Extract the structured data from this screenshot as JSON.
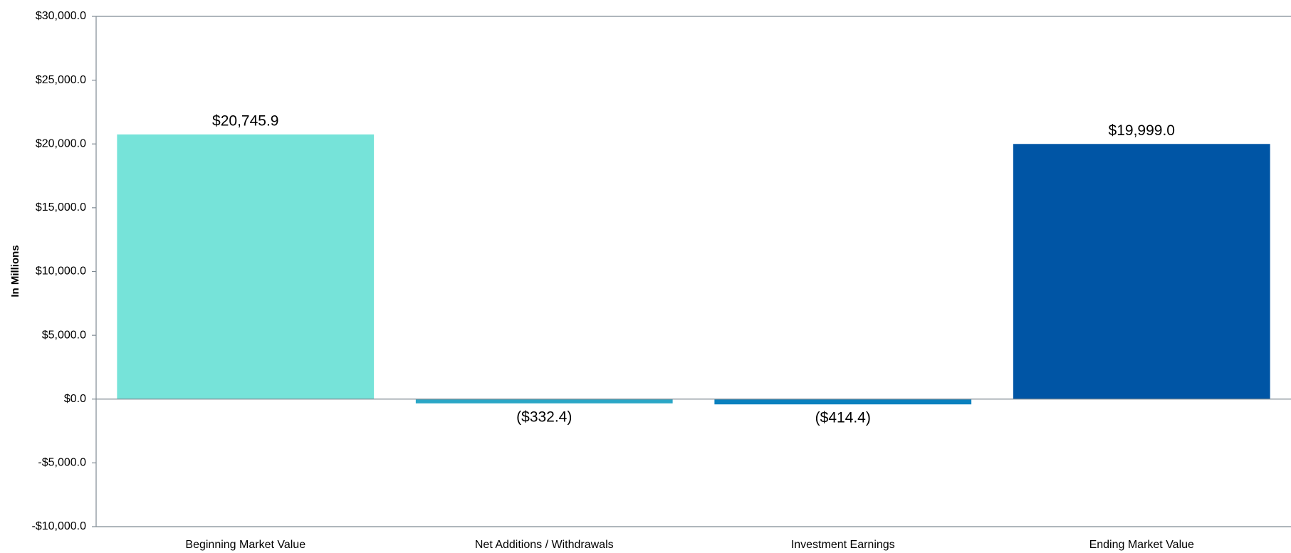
{
  "chart_data": {
    "type": "bar",
    "y_axis_label": "In Millions",
    "categories": [
      "Beginning Market Value",
      "Net Additions / Withdrawals",
      "Investment Earnings",
      "Ending Market Value"
    ],
    "values": [
      20745.9,
      -332.4,
      -414.4,
      19999.0
    ],
    "value_labels": [
      "$20,745.9",
      "($332.4)",
      "($414.4)",
      "$19,999.0"
    ],
    "colors": [
      "#76e3d9",
      "#2ba6c6",
      "#0a80be",
      "#0055a5"
    ],
    "ylim": [
      -10000,
      30000
    ],
    "yticks": [
      {
        "value": -10000,
        "label": "-$10,000.0"
      },
      {
        "value": -5000,
        "label": "-$5,000.0"
      },
      {
        "value": 0,
        "label": "$0.0"
      },
      {
        "value": 5000,
        "label": "$5,000.0"
      },
      {
        "value": 10000,
        "label": "$10,000.0"
      },
      {
        "value": 15000,
        "label": "$15,000.0"
      },
      {
        "value": 20000,
        "label": "$20,000.0"
      },
      {
        "value": 25000,
        "label": "$25,000.0"
      },
      {
        "value": 30000,
        "label": "$30,000.0"
      }
    ],
    "grid": false
  }
}
